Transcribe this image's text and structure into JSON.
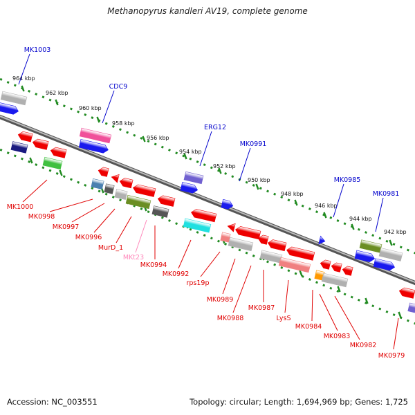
{
  "title": "Methanopyrus kandleri AV19, complete genome",
  "footer": {
    "accession": "Accession: NC_003551",
    "topology": "Topology: circular; Length: 1,694,969 bp; Genes: 1,725"
  },
  "colors": {
    "forward_label": "#0000cc",
    "reverse_label": "#e00000",
    "rna_label": "#ff88bb",
    "tick_marks": "#228b22",
    "backbone": "#777777"
  },
  "ruler_labels": [
    "964 kbp",
    "962 kbp",
    "960 kbp",
    "958 kbp",
    "956 kbp",
    "954 kbp",
    "952 kbp",
    "950 kbp",
    "948 kbp",
    "946 kbp",
    "944 kbp",
    "942 kbp"
  ],
  "forward_gene_labels": [
    "MK1003",
    "CDC9",
    "ERG12",
    "MK0991",
    "MK0985",
    "MK0981"
  ],
  "reverse_gene_labels": [
    "MK1000",
    "MK0998",
    "MK0997",
    "MK0996",
    "MurD_1",
    "MKt23",
    "MK0994",
    "MK0992",
    "rps19p",
    "MK0989",
    "MK0988",
    "MK0987",
    "LysS",
    "MK0984",
    "MK0983",
    "MK0982",
    "MK0979"
  ]
}
